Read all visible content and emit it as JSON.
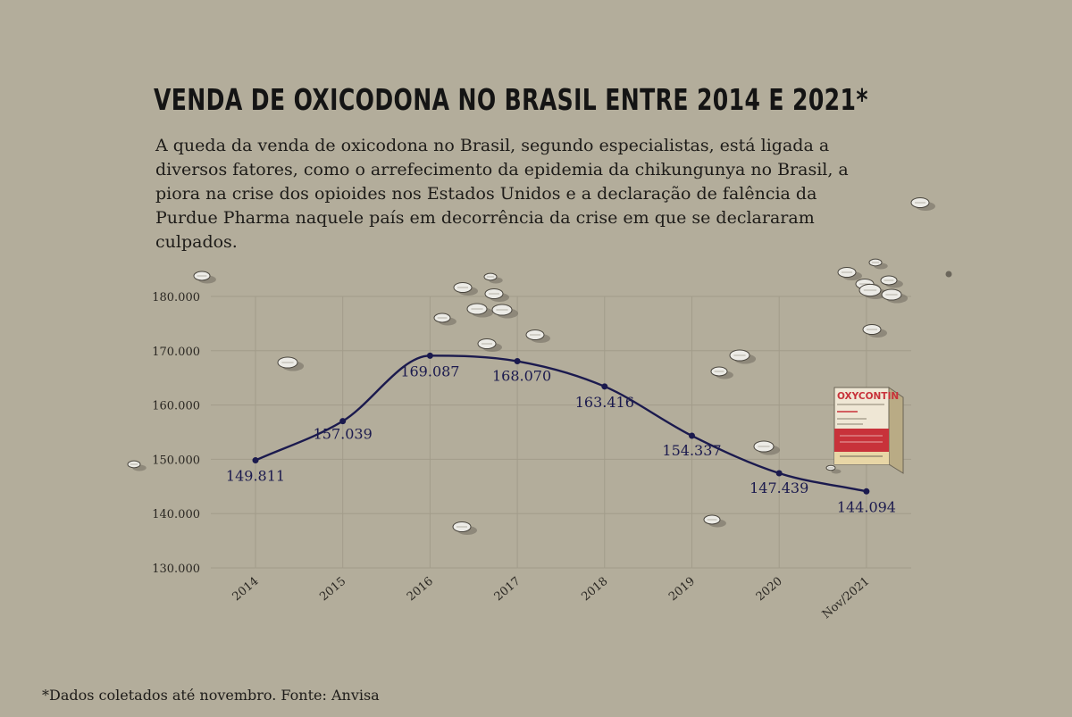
{
  "title": "VENDA DE OXICODONA NO BRASIL ENTRE 2014 E 2021*",
  "subtitle": "A queda da venda de oxicodona no Brasil, segundo especialistas, está ligada a diversos fatores, como o arrefecimento da epidemia da chikungunya no Brasil, a piora na crise dos opioides nos Estados Unidos e a declaração de falência da Purdue Pharma naquele país em decorrência da crise em que se declararam culpados.",
  "footer": "*Dados coletados até novembro. Fonte: Anvisa",
  "box_brand": "OXYCONTIN",
  "colors": {
    "background": "#b3ad9b",
    "line": "#1b1a4e",
    "grid": "#a29c8a",
    "box_red": "#c8323a",
    "box_beige": "#e8d6a6"
  },
  "chart_data": {
    "type": "line",
    "title": "VENDA DE OXICODONA NO BRASIL ENTRE 2014 E 2021*",
    "categories": [
      "2014",
      "2015",
      "2016",
      "2017",
      "2018",
      "2019",
      "2020",
      "Nov/2021"
    ],
    "values": [
      149811,
      157039,
      169087,
      168070,
      163416,
      154337,
      147439,
      144094
    ],
    "data_labels": [
      "149.811",
      "157.039",
      "169.087",
      "168.070",
      "163.416",
      "154.337",
      "147.439",
      "144.094"
    ],
    "y_ticks": [
      130000,
      140000,
      150000,
      160000,
      170000,
      180000
    ],
    "y_tick_labels": [
      "130.000",
      "140.000",
      "150.000",
      "160.000",
      "170.000",
      "180.000"
    ],
    "ylim": [
      130000,
      180000
    ],
    "xlabel": "",
    "ylabel": "",
    "grid": true,
    "smooth": true,
    "legend": "none"
  }
}
